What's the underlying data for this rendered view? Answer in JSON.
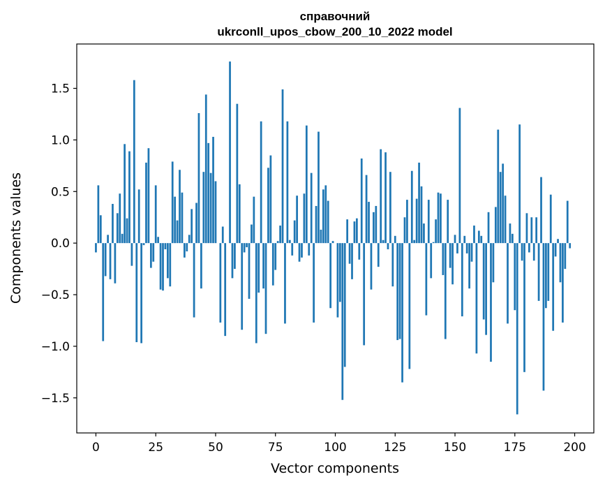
{
  "chart_data": {
    "type": "bar",
    "title_lines": [
      "справочний",
      "ukrconll_upos_cbow_200_10_2022 model"
    ],
    "xlabel": "Vector components",
    "ylabel": "Components values",
    "xlim": [
      -8,
      208
    ],
    "ylim": [
      -1.84,
      1.93
    ],
    "xticks": [
      0,
      25,
      50,
      75,
      100,
      125,
      150,
      175,
      200
    ],
    "yticks": [
      -1.5,
      -1.0,
      -0.5,
      0.0,
      0.5,
      1.0,
      1.5
    ],
    "ytick_labels": [
      "−1.5",
      "−1.0",
      "−0.5",
      "0.0",
      "0.5",
      "1.0",
      "1.5"
    ],
    "grid": false,
    "bar_color": "#1f77b4",
    "values": [
      -0.09,
      0.56,
      0.27,
      -0.95,
      -0.32,
      0.08,
      -0.35,
      0.38,
      -0.39,
      0.29,
      0.48,
      0.09,
      0.96,
      0.24,
      0.89,
      -0.22,
      1.58,
      -0.96,
      0.52,
      -0.97,
      -0.02,
      0.78,
      0.92,
      -0.24,
      -0.18,
      0.56,
      0.06,
      -0.45,
      -0.46,
      -0.06,
      -0.34,
      -0.42,
      0.79,
      0.45,
      0.22,
      0.71,
      0.49,
      -0.14,
      -0.08,
      0.08,
      0.33,
      -0.72,
      0.39,
      1.26,
      -0.44,
      0.69,
      1.44,
      0.97,
      0.68,
      1.03,
      0.6,
      0.0,
      -0.77,
      0.16,
      -0.9,
      0.0,
      1.76,
      -0.34,
      -0.25,
      1.35,
      0.57,
      -0.84,
      -0.09,
      -0.04,
      -0.54,
      0.18,
      0.45,
      -0.97,
      -0.48,
      1.18,
      -0.44,
      -0.88,
      0.73,
      0.85,
      -0.41,
      -0.26,
      0.02,
      0.17,
      1.49,
      -0.78,
      1.18,
      0.03,
      -0.12,
      0.22,
      0.46,
      -0.18,
      -0.14,
      0.48,
      1.14,
      -0.12,
      0.68,
      -0.77,
      0.36,
      1.08,
      0.13,
      0.52,
      0.56,
      0.41,
      -0.63,
      0.02,
      0.0,
      -0.72,
      -0.57,
      -1.52,
      -1.2,
      0.23,
      -0.2,
      -0.35,
      0.21,
      0.24,
      -0.16,
      0.82,
      -0.99,
      0.66,
      0.4,
      -0.45,
      0.3,
      0.36,
      -0.23,
      0.91,
      0.03,
      0.88,
      -0.06,
      0.69,
      -0.42,
      0.07,
      -0.94,
      -0.93,
      -1.35,
      0.25,
      0.42,
      -1.22,
      0.7,
      0.03,
      0.43,
      0.78,
      0.55,
      0.19,
      -0.7,
      0.42,
      -0.34,
      0.01,
      0.23,
      0.49,
      0.48,
      -0.31,
      -0.93,
      0.42,
      -0.24,
      -0.4,
      0.08,
      -0.1,
      1.31,
      -0.71,
      0.07,
      -0.1,
      -0.44,
      -0.18,
      0.17,
      -1.07,
      0.12,
      0.07,
      -0.74,
      -0.89,
      0.3,
      -1.15,
      -0.38,
      0.35,
      1.1,
      0.69,
      0.77,
      0.46,
      -0.78,
      0.19,
      0.09,
      -0.65,
      -1.66,
      1.15,
      -0.17,
      -1.25,
      0.29,
      -0.09,
      0.25,
      -0.17,
      0.25,
      -0.56,
      0.64,
      -1.43,
      -0.63,
      -0.56,
      0.47,
      -0.85,
      -0.13,
      0.04,
      -0.38,
      -0.77,
      -0.25,
      0.41,
      -0.05
    ]
  }
}
